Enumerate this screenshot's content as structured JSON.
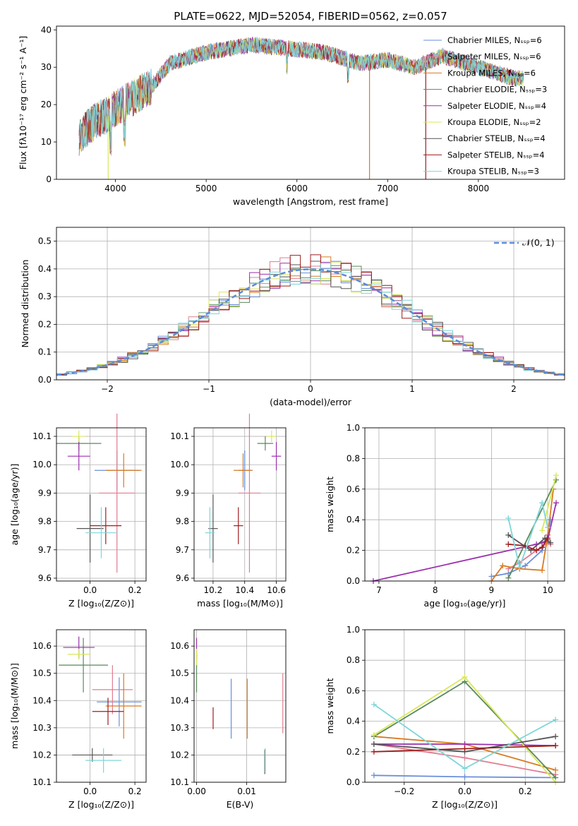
{
  "colors": [
    "#6a8fdb",
    "#e17c8f",
    "#d97a1f",
    "#5a8a5a",
    "#9b2fae",
    "#d8e85a",
    "#555555",
    "#a01c1c",
    "#7fd5d8"
  ],
  "charts": {
    "spectrum": {
      "title": "PLATE=0622, MJD=52054, FIBERID=0562, z=0.057",
      "xlabel": "wavelength [Angstrom, rest frame]",
      "ylabel": "Flux [fλ10⁻¹⁷ erg cm⁻² s⁻¹ A⁻¹]",
      "xticks": [
        "4000",
        "5000",
        "6000",
        "7000",
        "8000"
      ],
      "yticks": [
        "0",
        "10",
        "20",
        "30",
        "40"
      ],
      "legend": [
        "Chabrier MILES, Nₛₛₚ=6",
        "Salpeter MILES, Nₛₛₚ=6",
        "Kroupa MILES, Nₛₛₚ=6",
        "Chabrier ELODIE, Nₛₛₚ=3",
        "Salpeter ELODIE, Nₛₛₚ=4",
        "Kroupa ELODIE, Nₛₛₚ=2",
        "Chabrier STELIB, Nₛₛₚ=4",
        "Salpeter STELIB, Nₛₛₚ=4",
        "Kroupa STELIB, Nₛₛₚ=3"
      ]
    },
    "residuals": {
      "xlabel": "(data-model)/error",
      "ylabel": "Normed distribution",
      "xticks": [
        "−2",
        "−1",
        "0",
        "1",
        "2"
      ],
      "yticks": [
        "0.0",
        "0.1",
        "0.2",
        "0.3",
        "0.4",
        "0.5"
      ],
      "legend": "𝒩(0, 1)"
    },
    "age_vs_Z": {
      "xlabel": "Z [log₁₀(Z/Z⊙)]",
      "ylabel": "age  [log₁₀(age/yr)]",
      "xticks": [
        "0.0",
        "0.2"
      ],
      "yticks": [
        "9.6",
        "9.7",
        "9.8",
        "9.9",
        "10.0",
        "10.1"
      ]
    },
    "age_vs_mass": {
      "xlabel": "mass [log₁₀(M/M⊙)]",
      "xticks": [
        "10.2",
        "10.4",
        "10.6"
      ],
      "yticks": [
        "9.6",
        "9.7",
        "9.8",
        "9.9",
        "10.0",
        "10.1"
      ]
    },
    "mw_vs_age": {
      "xlabel": "age  [log₁₀(age/yr)]",
      "ylabel": "mass weight",
      "xticks": [
        "7",
        "8",
        "9",
        "10"
      ],
      "yticks": [
        "0.0",
        "0.2",
        "0.4",
        "0.6",
        "0.8",
        "1.0"
      ]
    },
    "mass_vs_Z": {
      "xlabel": "Z [log₁₀(Z/Z⊙)]",
      "ylabel": "mass [log₁₀(M/M⊙)]",
      "xticks": [
        "0.0",
        "0.2"
      ],
      "yticks": [
        "10.1",
        "10.2",
        "10.3",
        "10.4",
        "10.5",
        "10.6"
      ]
    },
    "mass_vs_EBV": {
      "xlabel": "E(B-V)",
      "xticks": [
        "0.00",
        "0.01"
      ],
      "yticks": [
        "10.1",
        "10.2",
        "10.3",
        "10.4",
        "10.5",
        "10.6"
      ]
    },
    "mw_vs_Z": {
      "xlabel": "Z [log₁₀(Z/Z⊙)]",
      "ylabel": "mass weight",
      "xticks": [
        "−0.2",
        "0.0",
        "0.2"
      ],
      "yticks": [
        "0.0",
        "0.2",
        "0.4",
        "0.6",
        "0.8",
        "1.0"
      ]
    }
  },
  "chart_data": [
    {
      "type": "line",
      "title": "PLATE=0622, MJD=52054, FIBERID=0562, z=0.057",
      "xlim": [
        3350,
        8950
      ],
      "ylim": [
        0,
        41
      ],
      "continuum_x": [
        3600,
        3700,
        3800,
        3900,
        4000,
        4200,
        4400,
        4600,
        5000,
        5500,
        5900,
        6300,
        6700,
        7000,
        7300,
        7600,
        8000,
        8400,
        8500
      ],
      "continuum_y": [
        11,
        14,
        16,
        17,
        19,
        22,
        25,
        31,
        34,
        36,
        35,
        34,
        31,
        32,
        30,
        33,
        30,
        27,
        27
      ],
      "grid": false,
      "legend_position": "upper-right"
    },
    {
      "type": "bar",
      "xlim": [
        -2.5,
        2.5
      ],
      "ylim": [
        0,
        0.55
      ],
      "bin_width": 0.1,
      "gaussian": {
        "mean": 0,
        "sigma": 1
      },
      "grid": true,
      "legend_position": "upper-right"
    },
    {
      "type": "scatter",
      "xlim": [
        -0.15,
        0.25
      ],
      "ylim": [
        9.59,
        10.13
      ],
      "points": [
        {
          "x": 0.12,
          "y": 9.98,
          "xerr": 0.1,
          "yerr": 0.07,
          "color": 0
        },
        {
          "x": 0.12,
          "y": 9.9,
          "xerr": 0.08,
          "yerr": 0.28,
          "color": 1
        },
        {
          "x": 0.15,
          "y": 9.98,
          "xerr": 0.08,
          "yerr": 0.06,
          "color": 2
        },
        {
          "x": -0.05,
          "y": 10.075,
          "xerr": 0.1,
          "yerr": 0.025,
          "color": 3
        },
        {
          "x": -0.05,
          "y": 10.03,
          "xerr": 0.05,
          "yerr": 0.05,
          "color": 4
        },
        {
          "x": -0.05,
          "y": 10.1,
          "xerr": 0.03,
          "yerr": 0.02,
          "color": 5
        },
        {
          "x": 0.0,
          "y": 9.775,
          "xerr": 0.06,
          "yerr": 0.12,
          "color": 6
        },
        {
          "x": 0.07,
          "y": 9.785,
          "xerr": 0.07,
          "yerr": 0.065,
          "color": 7
        },
        {
          "x": 0.05,
          "y": 9.76,
          "xerr": 0.07,
          "yerr": 0.09,
          "color": 8
        }
      ],
      "grid": true
    },
    {
      "type": "scatter",
      "xlim": [
        10.08,
        10.66
      ],
      "ylim": [
        9.59,
        10.13
      ],
      "points": [
        {
          "x": 10.4,
          "y": 9.98,
          "xerr": 0.04,
          "yerr": 0.07,
          "color": 0
        },
        {
          "x": 10.43,
          "y": 9.9,
          "xerr": 0.07,
          "yerr": 0.28,
          "color": 1
        },
        {
          "x": 10.39,
          "y": 9.98,
          "xerr": 0.06,
          "yerr": 0.06,
          "color": 2
        },
        {
          "x": 10.53,
          "y": 10.075,
          "xerr": 0.05,
          "yerr": 0.025,
          "color": 3
        },
        {
          "x": 10.6,
          "y": 10.03,
          "xerr": 0.03,
          "yerr": 0.05,
          "color": 4
        },
        {
          "x": 10.57,
          "y": 10.1,
          "xerr": 0.03,
          "yerr": 0.02,
          "color": 5
        },
        {
          "x": 10.2,
          "y": 9.775,
          "xerr": 0.03,
          "yerr": 0.12,
          "color": 6
        },
        {
          "x": 10.36,
          "y": 9.785,
          "xerr": 0.03,
          "yerr": 0.065,
          "color": 7
        },
        {
          "x": 10.18,
          "y": 9.76,
          "xerr": 0.03,
          "yerr": 0.09,
          "color": 8
        }
      ],
      "grid": true
    },
    {
      "type": "line",
      "xlim": [
        6.75,
        10.3
      ],
      "ylim": [
        0,
        1
      ],
      "series": [
        {
          "color": 0,
          "x": [
            9.0,
            9.3,
            9.6,
            9.9,
            10.0,
            10.05
          ],
          "y": [
            0.03,
            0.05,
            0.1,
            0.2,
            0.3,
            0.4
          ]
        },
        {
          "color": 1,
          "x": [
            9.3,
            9.5,
            9.8,
            10.0,
            10.05
          ],
          "y": [
            0.08,
            0.12,
            0.2,
            0.25,
            0.24
          ]
        },
        {
          "color": 2,
          "x": [
            9.0,
            9.2,
            9.5,
            9.9,
            10.0,
            10.1
          ],
          "y": [
            0.0,
            0.1,
            0.08,
            0.07,
            0.3,
            0.6
          ]
        },
        {
          "color": 3,
          "x": [
            9.3,
            10.15
          ],
          "y": [
            0.02,
            0.66
          ]
        },
        {
          "color": 4,
          "x": [
            6.9,
            9.8,
            9.9,
            10.0,
            10.15
          ],
          "y": [
            0.0,
            0.24,
            0.25,
            0.27,
            0.51
          ]
        },
        {
          "color": 5,
          "x": [
            9.9,
            10.15
          ],
          "y": [
            0.33,
            0.69
          ]
        },
        {
          "color": 6,
          "x": [
            9.3,
            9.7,
            9.95,
            10.05
          ],
          "y": [
            0.3,
            0.2,
            0.28,
            0.25
          ]
        },
        {
          "color": 7,
          "x": [
            9.3,
            9.6,
            9.8,
            9.9,
            10.0
          ],
          "y": [
            0.24,
            0.23,
            0.2,
            0.22,
            0.28
          ]
        },
        {
          "color": 8,
          "x": [
            9.3,
            9.5,
            9.9,
            10.0
          ],
          "y": [
            0.41,
            0.09,
            0.51,
            0.35
          ]
        }
      ],
      "grid": true
    },
    {
      "type": "scatter",
      "xlim": [
        -0.15,
        0.25
      ],
      "ylim": [
        10.1,
        10.66
      ],
      "points": [
        {
          "x": 0.13,
          "y": 10.395,
          "xerr": 0.1,
          "yerr": 0.09,
          "color": 0
        },
        {
          "x": 0.1,
          "y": 10.44,
          "xerr": 0.09,
          "yerr": 0.09,
          "color": 1
        },
        {
          "x": 0.15,
          "y": 10.38,
          "xerr": 0.08,
          "yerr": 0.12,
          "color": 2
        },
        {
          "x": -0.03,
          "y": 10.53,
          "xerr": 0.11,
          "yerr": 0.1,
          "color": 3
        },
        {
          "x": -0.05,
          "y": 10.595,
          "xerr": 0.07,
          "yerr": 0.04,
          "color": 4
        },
        {
          "x": -0.05,
          "y": 10.57,
          "xerr": 0.05,
          "yerr": 0.02,
          "color": 5
        },
        {
          "x": 0.01,
          "y": 10.2,
          "xerr": 0.09,
          "yerr": 0.025,
          "color": 6
        },
        {
          "x": 0.08,
          "y": 10.36,
          "xerr": 0.07,
          "yerr": 0.05,
          "color": 7
        },
        {
          "x": 0.06,
          "y": 10.18,
          "xerr": 0.08,
          "yerr": 0.045,
          "color": 8
        }
      ],
      "grid": true
    },
    {
      "type": "scatter",
      "xlim": [
        -0.0005,
        0.0178
      ],
      "ylim": [
        10.1,
        10.66
      ],
      "points": [
        {
          "x": 0.0069,
          "y": 10.37,
          "yerr": 0.11,
          "color": 0
        },
        {
          "x": 0.0172,
          "y": 10.39,
          "yerr": 0.11,
          "color": 1
        },
        {
          "x": 0.0101,
          "y": 10.37,
          "yerr": 0.11,
          "color": 2
        },
        {
          "x": 0.0,
          "y": 10.5,
          "yerr": 0.07,
          "color": 3
        },
        {
          "x": 0.0,
          "y": 10.59,
          "yerr": 0.04,
          "color": 4
        },
        {
          "x": 0.0,
          "y": 10.56,
          "yerr": 0.03,
          "color": 5
        },
        {
          "x": 0.0136,
          "y": 10.175,
          "yerr": 0.045,
          "color": 6
        },
        {
          "x": 0.0033,
          "y": 10.335,
          "yerr": 0.04,
          "color": 7
        },
        {
          "x": 0.0137,
          "y": 10.18,
          "yerr": 0.045,
          "color": 8
        }
      ],
      "grid": true
    },
    {
      "type": "line",
      "xlim": [
        -0.33,
        0.33
      ],
      "ylim": [
        0,
        1
      ],
      "series": [
        {
          "color": 0,
          "x": [
            -0.3,
            0.0,
            0.3
          ],
          "y": [
            0.045,
            0.035,
            0.03
          ]
        },
        {
          "color": 1,
          "x": [
            -0.3,
            0.0,
            0.3
          ],
          "y": [
            0.25,
            0.16,
            0.05
          ]
        },
        {
          "color": 2,
          "x": [
            -0.3,
            0.0,
            0.3
          ],
          "y": [
            0.3,
            0.25,
            0.08
          ]
        },
        {
          "color": 3,
          "x": [
            -0.3,
            0.0,
            0.3
          ],
          "y": [
            0.3,
            0.66,
            0.03
          ]
        },
        {
          "color": 4,
          "x": [
            -0.3,
            0.0,
            0.3
          ],
          "y": [
            0.25,
            0.25,
            0.24
          ]
        },
        {
          "color": 5,
          "x": [
            -0.3,
            0.0,
            0.3
          ],
          "y": [
            0.31,
            0.69,
            0.0
          ]
        },
        {
          "color": 6,
          "x": [
            -0.3,
            0.0,
            0.3
          ],
          "y": [
            0.25,
            0.2,
            0.3
          ]
        },
        {
          "color": 7,
          "x": [
            -0.3,
            0.0,
            0.3
          ],
          "y": [
            0.2,
            0.22,
            0.24
          ]
        },
        {
          "color": 8,
          "x": [
            -0.3,
            0.0,
            0.3
          ],
          "y": [
            0.51,
            0.09,
            0.41
          ]
        }
      ],
      "grid": true
    }
  ]
}
